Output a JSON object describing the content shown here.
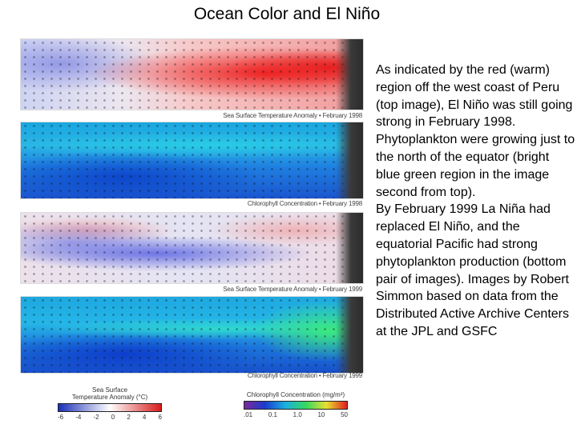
{
  "title": "Ocean Color and El Niño",
  "panels": [
    {
      "caption": "Sea Surface Temperature Anomaly • February 1998"
    },
    {
      "caption": "Chlorophyll Concentration • February 1998"
    },
    {
      "caption": "Sea Surface Temperature Anomaly • February 1999"
    },
    {
      "caption": "Chlorophyll Concentration • February 1999"
    }
  ],
  "body": {
    "para1": "As indicated by the red (warm) region off the west coast of Peru (top image), El Niño was still going strong in February 1998. Phytoplankton were growing just to the north of the equator (bright blue green region in the image second from top).",
    "para2": "By February 1999 La Niña had replaced El Niño, and the equatorial Pacific had strong phytoplankton production (bottom pair of images). Images by Robert Simmon based on data from the Distributed Active Archive Centers at the JPL and GSFC"
  },
  "legends": {
    "sst": {
      "title_line1": "Sea Surface",
      "title_line2": "Temperature Anomaly (°C)",
      "ticks": [
        "-6",
        "-4",
        "-2",
        "0",
        "2",
        "4",
        "6"
      ],
      "colors": [
        "#1a2fb8",
        "#ffffff",
        "#d81c1c"
      ]
    },
    "chl": {
      "title": "Chlorophyll Concentration (mg/m³)",
      "ticks": [
        ".01",
        "0.1",
        "1.0",
        "10",
        "50"
      ],
      "colors": [
        "#7a2a9a",
        "#1a3ccf",
        "#1ab0e0",
        "#36d860",
        "#e8e030",
        "#e02020"
      ]
    }
  }
}
